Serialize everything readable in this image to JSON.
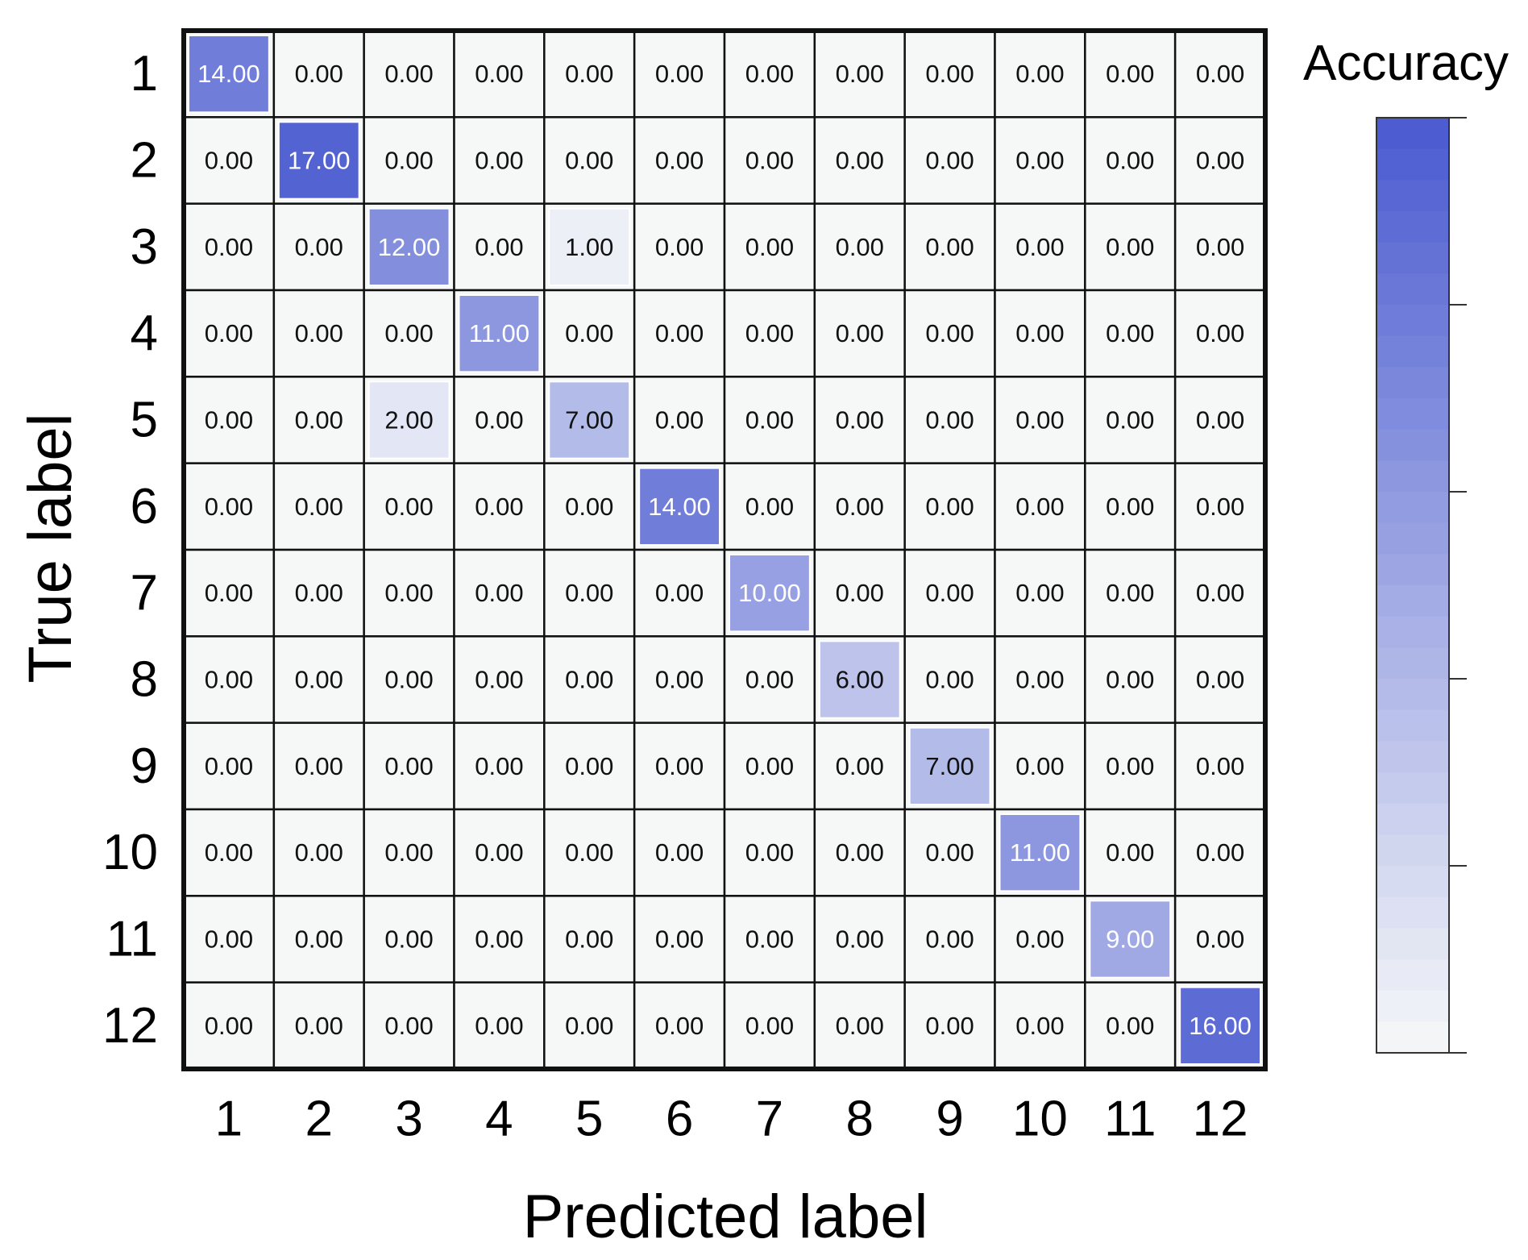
{
  "chart_data": {
    "type": "heatmap",
    "xlabel": "Predicted label",
    "ylabel": "True label",
    "colorbar_label": "Accuracy",
    "x_categories": [
      "1",
      "2",
      "3",
      "4",
      "5",
      "6",
      "7",
      "8",
      "9",
      "10",
      "11",
      "12"
    ],
    "y_categories": [
      "1",
      "2",
      "3",
      "4",
      "5",
      "6",
      "7",
      "8",
      "9",
      "10",
      "11",
      "12"
    ],
    "matrix": [
      [
        "14.00",
        "0.00",
        "0.00",
        "0.00",
        "0.00",
        "0.00",
        "0.00",
        "0.00",
        "0.00",
        "0.00",
        "0.00",
        "0.00"
      ],
      [
        "0.00",
        "17.00",
        "0.00",
        "0.00",
        "0.00",
        "0.00",
        "0.00",
        "0.00",
        "0.00",
        "0.00",
        "0.00",
        "0.00"
      ],
      [
        "0.00",
        "0.00",
        "12.00",
        "0.00",
        "1.00",
        "0.00",
        "0.00",
        "0.00",
        "0.00",
        "0.00",
        "0.00",
        "0.00"
      ],
      [
        "0.00",
        "0.00",
        "0.00",
        "11.00",
        "0.00",
        "0.00",
        "0.00",
        "0.00",
        "0.00",
        "0.00",
        "0.00",
        "0.00"
      ],
      [
        "0.00",
        "0.00",
        "2.00",
        "0.00",
        "7.00",
        "0.00",
        "0.00",
        "0.00",
        "0.00",
        "0.00",
        "0.00",
        "0.00"
      ],
      [
        "0.00",
        "0.00",
        "0.00",
        "0.00",
        "0.00",
        "14.00",
        "0.00",
        "0.00",
        "0.00",
        "0.00",
        "0.00",
        "0.00"
      ],
      [
        "0.00",
        "0.00",
        "0.00",
        "0.00",
        "0.00",
        "0.00",
        "10.00",
        "0.00",
        "0.00",
        "0.00",
        "0.00",
        "0.00"
      ],
      [
        "0.00",
        "0.00",
        "0.00",
        "0.00",
        "0.00",
        "0.00",
        "0.00",
        "6.00",
        "0.00",
        "0.00",
        "0.00",
        "0.00"
      ],
      [
        "0.00",
        "0.00",
        "0.00",
        "0.00",
        "0.00",
        "0.00",
        "0.00",
        "0.00",
        "7.00",
        "0.00",
        "0.00",
        "0.00"
      ],
      [
        "0.00",
        "0.00",
        "0.00",
        "0.00",
        "0.00",
        "0.00",
        "0.00",
        "0.00",
        "0.00",
        "11.00",
        "0.00",
        "0.00"
      ],
      [
        "0.00",
        "0.00",
        "0.00",
        "0.00",
        "0.00",
        "0.00",
        "0.00",
        "0.00",
        "0.00",
        "0.00",
        "9.00",
        "0.00"
      ],
      [
        "0.00",
        "0.00",
        "0.00",
        "0.00",
        "0.00",
        "0.00",
        "0.00",
        "0.00",
        "0.00",
        "0.00",
        "0.00",
        "16.00"
      ]
    ],
    "color_range": [
      0,
      18
    ],
    "colors": {
      "low": "#f6f8f8",
      "high": "#4a5ad0",
      "grid": "#111111",
      "text_dark": "#111111",
      "text_light": "#ffffff"
    }
  }
}
